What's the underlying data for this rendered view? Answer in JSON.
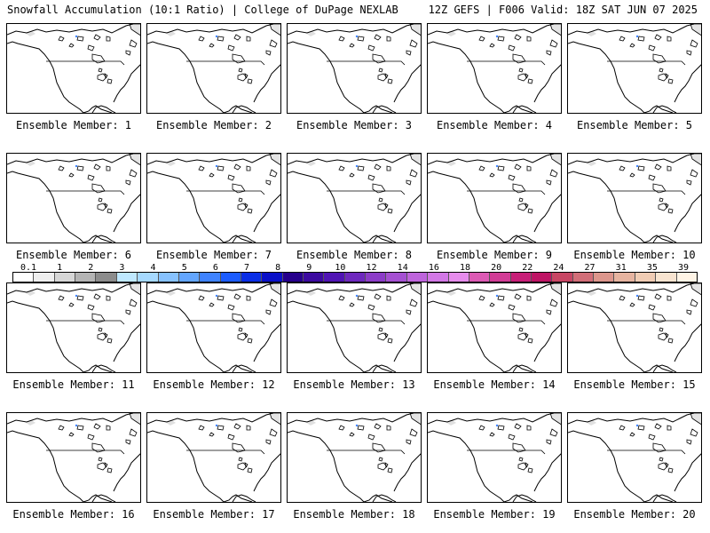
{
  "header": {
    "left_title": "Snowfall Accumulation (10:1 Ratio) | College of DuPage NEXLAB",
    "right_title": "12Z GEFS | F006 Valid: 18Z SAT JUN 07 2025"
  },
  "members": [
    {
      "label": "Ensemble Member: 1"
    },
    {
      "label": "Ensemble Member: 2"
    },
    {
      "label": "Ensemble Member: 3"
    },
    {
      "label": "Ensemble Member: 4"
    },
    {
      "label": "Ensemble Member: 5"
    },
    {
      "label": "Ensemble Member: 6"
    },
    {
      "label": "Ensemble Member: 7"
    },
    {
      "label": "Ensemble Member: 8"
    },
    {
      "label": "Ensemble Member: 9"
    },
    {
      "label": "Ensemble Member: 10"
    },
    {
      "label": "Ensemble Member: 11"
    },
    {
      "label": "Ensemble Member: 12"
    },
    {
      "label": "Ensemble Member: 13"
    },
    {
      "label": "Ensemble Member: 14"
    },
    {
      "label": "Ensemble Member: 15"
    },
    {
      "label": "Ensemble Member: 16"
    },
    {
      "label": "Ensemble Member: 17"
    },
    {
      "label": "Ensemble Member: 18"
    },
    {
      "label": "Ensemble Member: 19"
    },
    {
      "label": "Ensemble Member: 20"
    }
  ],
  "color_scale": {
    "ticks": [
      "0.1",
      "1",
      "2",
      "3",
      "4",
      "5",
      "6",
      "7",
      "8",
      "9",
      "10",
      "12",
      "14",
      "16",
      "18",
      "20",
      "22",
      "24",
      "27",
      "31",
      "35",
      "39"
    ],
    "colors": [
      "#ffffff",
      "#eeeeee",
      "#d6d6d6",
      "#b4b4b4",
      "#8c8c8c",
      "#bfe8ff",
      "#a6d9ff",
      "#87c2ff",
      "#63a6ff",
      "#3f83ff",
      "#1c5cff",
      "#0a2ee6",
      "#0a10c8",
      "#26008c",
      "#3c0aa0",
      "#5014b4",
      "#6e28be",
      "#8c3cc8",
      "#a550d2",
      "#be64dc",
      "#d278e6",
      "#e68cec",
      "#dc5ab4",
      "#d23c96",
      "#c81e78",
      "#be1464",
      "#c84664",
      "#d26e78",
      "#dc968c",
      "#e6b4a0",
      "#f0ccb4",
      "#f8e4d0",
      "#fff4e6"
    ]
  }
}
